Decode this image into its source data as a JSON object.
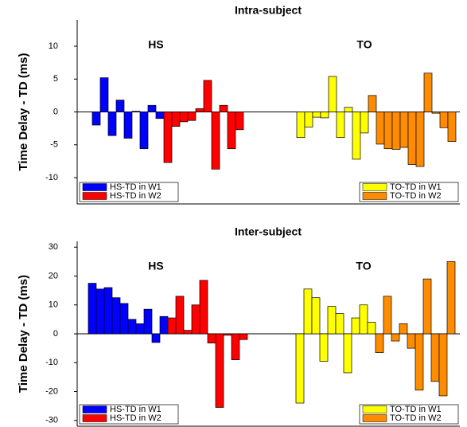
{
  "chart_data": [
    {
      "type": "bar",
      "title": "Intra-subject",
      "y_label": "Time Delay - TD (ms)",
      "ylim": [
        -14,
        14
      ],
      "yticks": [
        -10,
        -5,
        0,
        5,
        10
      ],
      "groups": [
        {
          "label": "HS",
          "legend": "lower left",
          "series": [
            {
              "name": "HS-TD in W1",
              "color": "#0000ff",
              "values": [
                -2,
                5.2,
                -3.6,
                1.8,
                -4,
                0.1,
                -5.6,
                1,
                -1
              ]
            },
            {
              "name": "HS-TD in W2",
              "color": "#ff0000",
              "values": [
                -7.7,
                -2.2,
                -1.5,
                -1.3,
                0.5,
                4.8,
                -8.7,
                1,
                -5.6,
                -2.7
              ]
            }
          ]
        },
        {
          "label": "TO",
          "legend": "lower right",
          "series": [
            {
              "name": "TO-TD in W1",
              "color": "#ffff00",
              "values": [
                -3.9,
                -2.3,
                -0.8,
                -0.9,
                5.4,
                -3.9,
                0.7,
                -7.2,
                -3.2
              ]
            },
            {
              "name": "TO-TD in W2",
              "color": "#ff8c00",
              "values": [
                2.5,
                -4.9,
                -5.6,
                -5.7,
                -5.4,
                -8,
                -8.3,
                5.9,
                -0.2,
                -2.4,
                -4.5
              ]
            }
          ]
        }
      ]
    },
    {
      "type": "bar",
      "title": "Inter-subject",
      "y_label": "Time Delay - TD (ms)",
      "ylim": [
        -32,
        32
      ],
      "yticks": [
        -30,
        -20,
        -10,
        0,
        10,
        20,
        30
      ],
      "groups": [
        {
          "label": "HS",
          "legend": "lower left",
          "series": [
            {
              "name": "HS-TD in W1",
              "color": "#0000ff",
              "values": [
                17.5,
                15.5,
                16,
                12.5,
                10.5,
                5,
                3.5,
                8.5,
                -3,
                6
              ]
            },
            {
              "name": "HS-TD in W2",
              "color": "#ff0000",
              "values": [
                5.5,
                13,
                1.2,
                10,
                18.5,
                -3.2,
                -25.5,
                -0.5,
                -9,
                -2
              ]
            }
          ]
        },
        {
          "label": "TO",
          "legend": "lower right",
          "series": [
            {
              "name": "TO-TD in W1",
              "color": "#ffff00",
              "values": [
                -24,
                15.5,
                12.5,
                -9.5,
                9.5,
                7,
                -13.5,
                5.5,
                10,
                4
              ]
            },
            {
              "name": "TO-TD in W2",
              "color": "#ff8c00",
              "values": [
                -6.5,
                13,
                -2.5,
                3.5,
                -5,
                -19.5,
                19,
                -16.5,
                -21.5,
                25
              ]
            }
          ]
        }
      ]
    }
  ]
}
